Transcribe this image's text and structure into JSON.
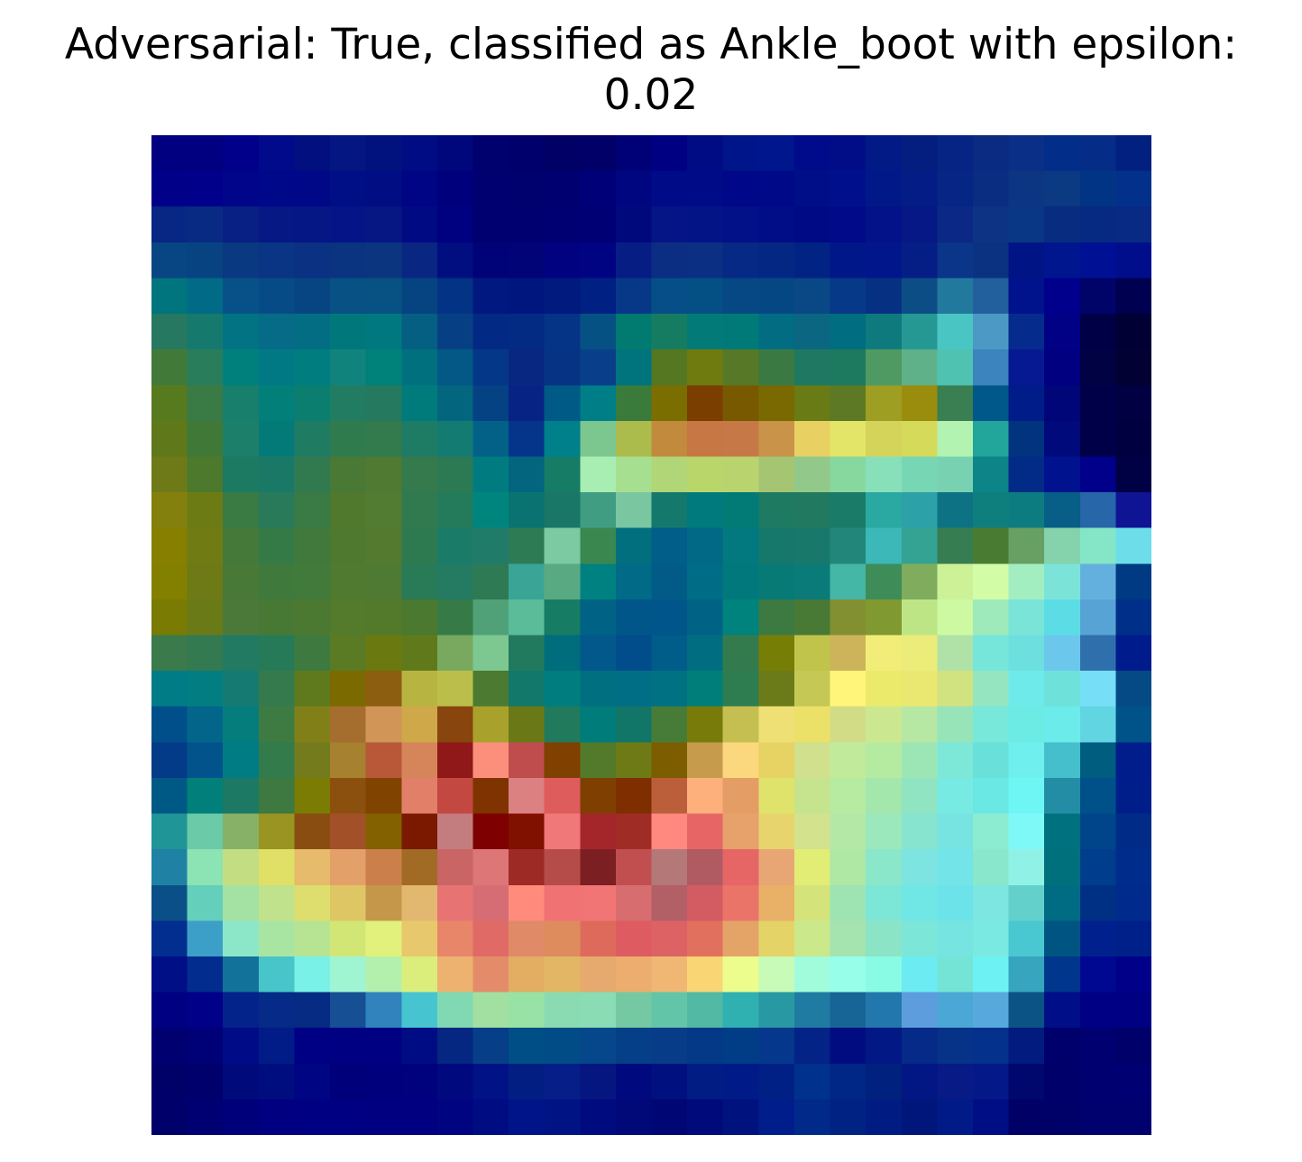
{
  "figure": {
    "title": "Adversarial: True, classified as Ankle_boot with epsilon:\n0.02"
  },
  "image": {
    "rows": 28,
    "cols": 28,
    "pixels": [
      [
        "#000080",
        "#000080",
        "#00008b",
        "#000a8b",
        "#010f7f",
        "#031681",
        "#01127f",
        "#000c84",
        "#00077c",
        "#00006e",
        "#00006d",
        "#000066",
        "#000068",
        "#000177",
        "#000082",
        "#000c84",
        "#00158a",
        "#00168c",
        "#000b8b",
        "#000d86",
        "#011a85",
        "#041e7f",
        "#052484",
        "#0a2b81",
        "#0a2f86",
        "#022d89",
        "#052d88",
        "#012080"
      ],
      [
        "#000088",
        "#00008a",
        "#000589",
        "#00088a",
        "#000888",
        "#000f85",
        "#010d83",
        "#000586",
        "#00007d",
        "#000070",
        "#00006f",
        "#000070",
        "#000079",
        "#000680",
        "#000b87",
        "#000c87",
        "#000788",
        "#000a88",
        "#000f87",
        "#00108c",
        "#011889",
        "#041c85",
        "#072584",
        "#0a2d81",
        "#0c3582",
        "#0b3982",
        "#023485",
        "#02308a"
      ],
      [
        "#082683",
        "#092a83",
        "#081f83",
        "#051884",
        "#041785",
        "#051486",
        "#061784",
        "#000a83",
        "#000180",
        "#000070",
        "#000070",
        "#000072",
        "#000074",
        "#00097b",
        "#061585",
        "#031487",
        "#031188",
        "#000d86",
        "#000a85",
        "#010a89",
        "#031288",
        "#051885",
        "#0b2886",
        "#0d3384",
        "#093786",
        "#082c80",
        "#062981",
        "#082a84"
      ],
      [
        "#074683",
        "#074381",
        "#093980",
        "#0a3484",
        "#0a3182",
        "#0a3380",
        "#0b357e",
        "#092683",
        "#000e7f",
        "#000377",
        "#000477",
        "#00027f",
        "#000483",
        "#061e84",
        "#0b2e82",
        "#0b3083",
        "#052984",
        "#052784",
        "#012384",
        "#00178a",
        "#00168a",
        "#051e86",
        "#0b3588",
        "#0b3181",
        "#001486",
        "#00168e",
        "#001094",
        "#000e8c"
      ],
      [
        "#00757d",
        "#006a87",
        "#085188",
        "#074b86",
        "#074582",
        "#075185",
        "#075183",
        "#064381",
        "#033384",
        "#011880",
        "#00167f",
        "#001a7e",
        "#012083",
        "#073888",
        "#064e87",
        "#045085",
        "#054883",
        "#054783",
        "#094885",
        "#063987",
        "#063183",
        "#0d4d86",
        "#217a9e",
        "#225f9d",
        "#00128c",
        "#00008d",
        "#000367",
        "#000050"
      ],
      [
        "#267860",
        "#16796e",
        "#017383",
        "#056b86",
        "#036d84",
        "#00787b",
        "#007880",
        "#045f82",
        "#073f84",
        "#022984",
        "#032b83",
        "#053386",
        "#065183",
        "#017a70",
        "#167c61",
        "#027a77",
        "#007a78",
        "#016c82",
        "#0b6682",
        "#006e80",
        "#0f7a7d",
        "#269894",
        "#49c5c4",
        "#4c99c6",
        "#052b8c",
        "#000185",
        "#000046",
        "#000034"
      ],
      [
        "#417a38",
        "#297d5a",
        "#00807c",
        "#007984",
        "#007e7f",
        "#11837d",
        "#00827b",
        "#00707f",
        "#035885",
        "#053789",
        "#082780",
        "#073385",
        "#093f8a",
        "#00747d",
        "#557721",
        "#707b0f",
        "#577827",
        "#3a7a42",
        "#1e7862",
        "#1e7a5e",
        "#4f9a62",
        "#5fb18a",
        "#50c2b1",
        "#3b84bd",
        "#061993",
        "#000080",
        "#000244",
        "#010233"
      ],
      [
        "#587a1f",
        "#3a7a44",
        "#187f6d",
        "#027f79",
        "#0b7e6f",
        "#217c61",
        "#24795f",
        "#007b7c",
        "#03667e",
        "#044283",
        "#072484",
        "#005a86",
        "#007e88",
        "#3a7b3b",
        "#7a6e00",
        "#793e00",
        "#785900",
        "#7a6900",
        "#687b15",
        "#5d7925",
        "#9d9e22",
        "#9a8c0d",
        "#397f51",
        "#00578a",
        "#001c88",
        "#000678",
        "#000048",
        "#000043"
      ],
      [
        "#5f781a",
        "#407937",
        "#1c7f6a",
        "#047a78",
        "#207b63",
        "#2f7b4e",
        "#337a4c",
        "#1e7b64",
        "#147b72",
        "#036187",
        "#04358b",
        "#00808a",
        "#7cc690",
        "#abbc4d",
        "#c18a3c",
        "#c77744",
        "#c67947",
        "#c99349",
        "#e8d162",
        "#e3e568",
        "#d4d35a",
        "#d6da5a",
        "#b2f3b2",
        "#22a59a",
        "#01337e",
        "#000a7b",
        "#000048",
        "#000041"
      ],
      [
        "#6e7a18",
        "#4c792b",
        "#1c7a62",
        "#1a7966",
        "#317a50",
        "#4a7936",
        "#507932",
        "#347a4c",
        "#2c7a54",
        "#007c81",
        "#03657e",
        "#167c66",
        "#a8edb2",
        "#a7df90",
        "#b0d677",
        "#b9d66a",
        "#b9d36e",
        "#a5c573",
        "#92c98a",
        "#87d89f",
        "#88e0bb",
        "#77d6b3",
        "#78d1b1",
        "#0d8487",
        "#012b87",
        "#00128e",
        "#00008b",
        "#000045"
      ],
      [
        "#83800d",
        "#6c7b14",
        "#3a7a43",
        "#287a5a",
        "#3a7a45",
        "#51792e",
        "#527c32",
        "#317a50",
        "#237b5b",
        "#00857e",
        "#087371",
        "#197768",
        "#409d81",
        "#79c6a0",
        "#14786d",
        "#007a7c",
        "#027a76",
        "#1f7a62",
        "#217a5f",
        "#1a7b68",
        "#2aa9a2",
        "#2da1a8",
        "#0d7384",
        "#0e7f7c",
        "#0d7c81",
        "#075e86",
        "#2766a8",
        "#0f1494"
      ],
      [
        "#867f00",
        "#707b13",
        "#45793a",
        "#347a47",
        "#41793d",
        "#507930",
        "#537a2f",
        "#2e7a50",
        "#1a7b69",
        "#207c69",
        "#2d7b55",
        "#7bcaa2",
        "#3a884f",
        "#016f7e",
        "#005e89",
        "#016986",
        "#01797e",
        "#15786b",
        "#18796b",
        "#22877a",
        "#3bb8b7",
        "#35a394",
        "#377d52",
        "#4a7b32",
        "#68a063",
        "#84d3ad",
        "#84e6c6",
        "#6ddde9"
      ],
      [
        "#838000",
        "#6d7a15",
        "#487936",
        "#3f7a3c",
        "#427a3b",
        "#507a30",
        "#4f7a33",
        "#297a56",
        "#247b62",
        "#2e7a55",
        "#3aa597",
        "#59aa82",
        "#008181",
        "#006a87",
        "#025b87",
        "#006c85",
        "#00787c",
        "#087a75",
        "#0a7b79",
        "#44b7a6",
        "#3e8d59",
        "#7fad5d",
        "#ccf197",
        "#d3fca6",
        "#a2eec0",
        "#7ce3d9",
        "#63b0df",
        "#003a82"
      ],
      [
        "#797b03",
        "#697a17",
        "#4b7939",
        "#487934",
        "#4c7932",
        "#547a2b",
        "#53792b",
        "#4b792f",
        "#357a47",
        "#50a177",
        "#5bbc9a",
        "#167c64",
        "#006284",
        "#005689",
        "#00558a",
        "#006386",
        "#00827d",
        "#3c7a42",
        "#487935",
        "#829032",
        "#809930",
        "#bde586",
        "#cdf9a3",
        "#9eeabb",
        "#7be4d8",
        "#5cdde6",
        "#58a3d6",
        "#002f89"
      ],
      [
        "#3a7a4b",
        "#337a50",
        "#237a62",
        "#277a57",
        "#3e7a40",
        "#5a7a23",
        "#6a7a10",
        "#607a1b",
        "#78a95f",
        "#7dc891",
        "#227a5e",
        "#006d7d",
        "#02588b",
        "#014d8c",
        "#005c88",
        "#006e80",
        "#337b4d",
        "#777e06",
        "#c1c44a",
        "#cdb45a",
        "#f2ed78",
        "#ebec7a",
        "#b0e2a7",
        "#75e6d9",
        "#6ddfde",
        "#6bc8ec",
        "#2f6fab",
        "#001b8c"
      ],
      [
        "#007c87",
        "#027e82",
        "#157b72",
        "#357a4c",
        "#5f7a1d",
        "#7b6a00",
        "#8c5e10",
        "#b8b441",
        "#bbbe4b",
        "#4c7a31",
        "#12786a",
        "#007d7e",
        "#006f80",
        "#006e85",
        "#007182",
        "#007e79",
        "#2d7d51",
        "#6c7b19",
        "#c6c855",
        "#fff57a",
        "#ecea6b",
        "#eae870",
        "#d1e280",
        "#95e5c1",
        "#6feaea",
        "#6ee1da",
        "#76dff7",
        "#054a85"
      ],
      [
        "#014f8a",
        "#04658a",
        "#057d7d",
        "#3e7b43",
        "#818018",
        "#a56e2e",
        "#d19557",
        "#cea849",
        "#89450e",
        "#a8a22c",
        "#6a7915",
        "#227a5c",
        "#007c7b",
        "#117567",
        "#477c38",
        "#787b09",
        "#c4bf50",
        "#eee074",
        "#ebe068",
        "#d2dc87",
        "#cbe891",
        "#b6e8a3",
        "#98e4b9",
        "#77e8da",
        "#6ceae4",
        "#6becea",
        "#62d5e3",
        "#005388"
      ],
      [
        "#043b88",
        "#02538b",
        "#007c85",
        "#337b4a",
        "#737b1c",
        "#a6812f",
        "#b85839",
        "#d6855b",
        "#901818",
        "#fb8f7c",
        "#c04d4d",
        "#804000",
        "#527a2a",
        "#6e7a15",
        "#7c5d00",
        "#c69b4b",
        "#fbd77d",
        "#e6d364",
        "#d0e08c",
        "#c1eb9b",
        "#b5eba0",
        "#9ce6b6",
        "#7de8d8",
        "#69e0da",
        "#6fefee",
        "#45bfcb",
        "#005d80",
        "#001d8b"
      ],
      [
        "#005985",
        "#01807b",
        "#1c7963",
        "#3d7940",
        "#7b7c04",
        "#8c500e",
        "#804400",
        "#e27f69",
        "#c34841",
        "#7f3300",
        "#db8182",
        "#df5c5c",
        "#7e3f00",
        "#7f2e00",
        "#bb5f3a",
        "#fdb07c",
        "#e59d66",
        "#dfe36b",
        "#c6e38e",
        "#b7eba2",
        "#a4e7ad",
        "#91e4c1",
        "#77eae3",
        "#6ae8e3",
        "#6ef6f5",
        "#238da6",
        "#00508a",
        "#001e8a"
      ],
      [
        "#209597",
        "#6bcaa8",
        "#87b167",
        "#9a9423",
        "#894d11",
        "#a25028",
        "#836000",
        "#7b1800",
        "#c47d7e",
        "#7f0000",
        "#801000",
        "#f07878",
        "#a4262b",
        "#a02d25",
        "#ff897f",
        "#e86565",
        "#e6a26a",
        "#e8d46d",
        "#d3e28c",
        "#b4e8a6",
        "#9be8bd",
        "#87e4cf",
        "#77e4e2",
        "#8cecd1",
        "#7ef9f7",
        "#00717e",
        "#00458a",
        "#002c88"
      ],
      [
        "#1f82a4",
        "#8ce3b3",
        "#c3de82",
        "#e0df66",
        "#e6bb6c",
        "#e3a169",
        "#cb804b",
        "#a26b25",
        "#c96565",
        "#dd7677",
        "#9e2a26",
        "#b64c4a",
        "#7b1f22",
        "#c14f50",
        "#b47878",
        "#b05a61",
        "#e66565",
        "#e7a674",
        "#e1ed75",
        "#afe7a4",
        "#8ae7c9",
        "#7de4e1",
        "#73e4e8",
        "#89e8cc",
        "#90f2e6",
        "#00707d",
        "#003d8c",
        "#002d8c"
      ],
      [
        "#0b4f88",
        "#64cfbb",
        "#a4e2a4",
        "#c0e28d",
        "#ddde6d",
        "#dec665",
        "#c5974a",
        "#e2b770",
        "#e87373",
        "#d76d74",
        "#fe8b7c",
        "#f17273",
        "#f17575",
        "#d86d6f",
        "#b25f66",
        "#d35c63",
        "#eb7468",
        "#e9b067",
        "#d4e47a",
        "#9de4b2",
        "#7ce7d6",
        "#70e7e5",
        "#6be3e8",
        "#7de6e1",
        "#63d0cc",
        "#006c84",
        "#003084",
        "#002b8c"
      ],
      [
        "#022e8f",
        "#3c9fc7",
        "#8be7c8",
        "#a9e5a2",
        "#b7e492",
        "#d2e676",
        "#e1f17b",
        "#e8c86c",
        "#e88669",
        "#e06b66",
        "#e18a67",
        "#de8c5e",
        "#de6a5c",
        "#de5b62",
        "#dd6264",
        "#e2705e",
        "#e4a468",
        "#e4d367",
        "#cbe88b",
        "#a5e3af",
        "#8be4c5",
        "#7ce6d9",
        "#76e5e1",
        "#7ae9e2",
        "#49c8d1",
        "#005482",
        "#00218d",
        "#002089"
      ],
      [
        "#000f85",
        "#022c8e",
        "#137299",
        "#47c5c9",
        "#79f1e7",
        "#9ff5d2",
        "#b3f0ad",
        "#dbee7c",
        "#eeb270",
        "#e48c6a",
        "#e3ad62",
        "#e2b664",
        "#e7aa6e",
        "#ecad6e",
        "#f0b774",
        "#f9d574",
        "#ecfd8d",
        "#c8fbb7",
        "#a1fcdb",
        "#97feea",
        "#89fbe4",
        "#6cebf2",
        "#74e4d6",
        "#6ef1f2",
        "#37a5be",
        "#00368b",
        "#000891",
        "#000089"
      ],
      [
        "#000082",
        "#000089",
        "#03228a",
        "#052a87",
        "#062b82",
        "#164f94",
        "#3083bd",
        "#46c5d1",
        "#80d9b3",
        "#a1e0a0",
        "#99e2a5",
        "#8adbb1",
        "#89dcb3",
        "#74c9a2",
        "#62c5a7",
        "#51b9a4",
        "#2fb0b1",
        "#2899a2",
        "#207ba3",
        "#176596",
        "#2277ad",
        "#5d9ddd",
        "#4ba7d5",
        "#57a9dd",
        "#0a5384",
        "#000e88",
        "#000084",
        "#000082"
      ],
      [
        "#000070",
        "#000077",
        "#000c87",
        "#011c87",
        "#000085",
        "#000082",
        "#000082",
        "#000c83",
        "#052781",
        "#063e88",
        "#004e86",
        "#014c86",
        "#05478a",
        "#053f88",
        "#073c89",
        "#043988",
        "#003d86",
        "#05388d",
        "#032486",
        "#000c80",
        "#021985",
        "#052a87",
        "#063287",
        "#04318b",
        "#021b7f",
        "#00006d",
        "#000071",
        "#00006b"
      ],
      [
        "#000069",
        "#00006c",
        "#000a7b",
        "#000d7f",
        "#000583",
        "#00007b",
        "#00007d",
        "#00017c",
        "#00097e",
        "#001286",
        "#021e83",
        "#061e87",
        "#061681",
        "#00097e",
        "#00117f",
        "#011d83",
        "#001b87",
        "#002086",
        "#00318c",
        "#002686",
        "#00217d",
        "#031784",
        "#071a86",
        "#051888",
        "#00086d",
        "#00006a",
        "#000071",
        "#000073"
      ],
      [
        "#00006b",
        "#000072",
        "#00007b",
        "#000080",
        "#000082",
        "#000082",
        "#000080",
        "#000080",
        "#000480",
        "#000c82",
        "#00148a",
        "#001384",
        "#000b80",
        "#000977",
        "#000674",
        "#000a7b",
        "#00127e",
        "#001e8b",
        "#002989",
        "#002283",
        "#001c82",
        "#00167b",
        "#001a87",
        "#000e85",
        "#000067",
        "#000069",
        "#00006e",
        "#00006f"
      ]
    ]
  }
}
